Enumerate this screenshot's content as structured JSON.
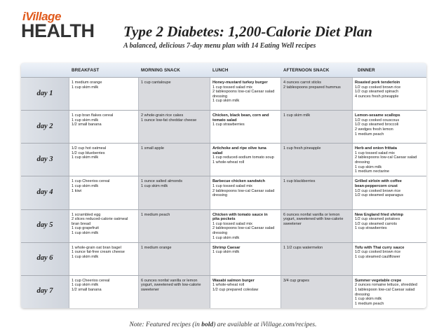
{
  "logo": {
    "top": "iVillage",
    "bottom": "HEALTH"
  },
  "title": "Type 2 Diabetes: 1,200-Calorie Diet Plan",
  "subtitle": "A balanced, delicious 7-day menu plan with 14 Eating Well recipes",
  "columns": [
    "BREAKFAST",
    "MORNING SNACK",
    "LUNCH",
    "AFTERNOON SNACK",
    "DINNER"
  ],
  "days": [
    {
      "label": "day 1",
      "breakfast": [
        {
          "t": "1 medium orange"
        },
        {
          "t": "1 cup skim milk"
        }
      ],
      "morning_snack": [
        {
          "t": "1 cup cantaloupe"
        }
      ],
      "lunch": [
        {
          "t": "Honey-mustard turkey burger",
          "b": true
        },
        {
          "t": "1 cup tossed salad mix"
        },
        {
          "t": "2 tablespoons low-cal Caesar salad"
        },
        {
          "t": "dressing"
        },
        {
          "t": "1 cup skim milk"
        }
      ],
      "afternoon_snack": [
        {
          "t": "4 ounces carrot sticks"
        },
        {
          "t": "2 tablespoons prepared hummus"
        }
      ],
      "dinner": [
        {
          "t": "Roasted pork tenderloin",
          "b": true
        },
        {
          "t": "1/2 cup cooked brown rice"
        },
        {
          "t": "1/2 cup steamed spinach"
        },
        {
          "t": "4 ounces fresh pineapple"
        }
      ]
    },
    {
      "label": "day 2",
      "breakfast": [
        {
          "t": "1 cup bran flakes cereal"
        },
        {
          "t": "1 cup skim milk"
        },
        {
          "t": "1/2 small banana"
        }
      ],
      "morning_snack": [
        {
          "t": "2 whole-grain rice cakes"
        },
        {
          "t": "1 ounce low-fat cheddar cheese"
        }
      ],
      "lunch": [
        {
          "t": "Chicken, black bean, corn and",
          "b": true
        },
        {
          "t": "tomato salad",
          "b": true
        },
        {
          "t": "1 cup strawberries"
        }
      ],
      "afternoon_snack": [
        {
          "t": "1 cup skim milk"
        }
      ],
      "dinner": [
        {
          "t": "Lemon-sesame scallops",
          "b": true
        },
        {
          "t": "1/2 cup cooked couscous"
        },
        {
          "t": "1/2 cup steamed broccoli"
        },
        {
          "t": "2 wedges fresh lemon"
        },
        {
          "t": "1 medium peach"
        }
      ]
    },
    {
      "label": "day 3",
      "breakfast": [
        {
          "t": "1/2 cup hot oatmeal"
        },
        {
          "t": "1/2 cup blueberries"
        },
        {
          "t": "1 cup skim milk"
        }
      ],
      "morning_snack": [
        {
          "t": "1 small apple"
        }
      ],
      "lunch": [
        {
          "t": "Artichoke and ripe olive tuna",
          "b": true
        },
        {
          "t": "salad",
          "b": true
        },
        {
          "t": "1 cup reduced-sodium tomato soup"
        },
        {
          "t": "1 whole-wheat roll"
        }
      ],
      "afternoon_snack": [
        {
          "t": "1 cup fresh pineapple"
        }
      ],
      "dinner": [
        {
          "t": "Herb and onion frittata",
          "b": true
        },
        {
          "t": "1 cup tossed salad mix"
        },
        {
          "t": "2 tablespoons low-cal Caesar salad"
        },
        {
          "t": "dressing"
        },
        {
          "t": "1 cup skim milk"
        },
        {
          "t": "1 medium nectarine"
        }
      ]
    },
    {
      "label": "day 4",
      "breakfast": [
        {
          "t": "1 cup Cheerios cereal"
        },
        {
          "t": "1 cup skim milk"
        },
        {
          "t": "1 kiwi"
        }
      ],
      "morning_snack": [
        {
          "t": "1 ounce salted almonds"
        },
        {
          "t": "1 cup skim milk"
        }
      ],
      "lunch": [
        {
          "t": "Barbecue chicken sandwich",
          "b": true
        },
        {
          "t": "1 cup tossed salad mix"
        },
        {
          "t": "2 tablespoons low-cal Caesar salad"
        },
        {
          "t": "dressing"
        }
      ],
      "afternoon_snack": [
        {
          "t": "1 cup blackberries"
        }
      ],
      "dinner": [
        {
          "t": "Grilled sirloin with coffee",
          "b": true
        },
        {
          "t": "bean-peppercorn crust",
          "b": true
        },
        {
          "t": "1/2 cup cooked brown rice"
        },
        {
          "t": "1/2 cup steamed asparagus"
        }
      ]
    },
    {
      "label": "day 5",
      "breakfast": [
        {
          "t": "1 scrambled egg"
        },
        {
          "t": "2 slices reduced-calorie oatmeal"
        },
        {
          "t": "bran bread"
        },
        {
          "t": "1 cup grapefruit"
        },
        {
          "t": "1 cup skim milk"
        }
      ],
      "morning_snack": [
        {
          "t": "1 medium peach"
        }
      ],
      "lunch": [
        {
          "t": "Chicken with tomato sauce in",
          "b": true
        },
        {
          "t": "pita pockets",
          "b": true
        },
        {
          "t": "1 cup tossed salad mix"
        },
        {
          "t": "2 tablespoons low-cal Caesar salad"
        },
        {
          "t": "dressing"
        },
        {
          "t": "1 cup skim milk"
        }
      ],
      "afternoon_snack": [
        {
          "t": "6 ounces nonfat vanilla or lemon"
        },
        {
          "t": "yogurt, sweetened with low-calorie"
        },
        {
          "t": "sweetener"
        }
      ],
      "dinner": [
        {
          "t": "New England fried shrimp",
          "b": true
        },
        {
          "t": "1/2 cup steamed potatoes"
        },
        {
          "t": "1/2 cup steamed carrots"
        },
        {
          "t": "1 cup strawberries"
        }
      ]
    },
    {
      "label": "day 6",
      "breakfast": [
        {
          "t": "1 whole-grain oat bran bagel"
        },
        {
          "t": "1 ounce fat-free cream cheese"
        },
        {
          "t": "1 cup skim milk"
        }
      ],
      "morning_snack": [
        {
          "t": "1 medium orange"
        }
      ],
      "lunch": [
        {
          "t": "Shrimp Caesar",
          "b": true
        },
        {
          "t": "1 cup skim milk"
        }
      ],
      "afternoon_snack": [
        {
          "t": "1 1/2 cups watermelon"
        }
      ],
      "dinner": [
        {
          "t": "Tofu with Thai curry sauce",
          "b": true
        },
        {
          "t": "1/2 cup cooked brown rice"
        },
        {
          "t": "1 cup steamed cauliflower"
        }
      ]
    },
    {
      "label": "day 7",
      "breakfast": [
        {
          "t": "1 cup Cheerios cereal"
        },
        {
          "t": "1 cup skim milk"
        },
        {
          "t": "1/2 small banana"
        }
      ],
      "morning_snack": [
        {
          "t": "6 ounces nonfat vanilla or lemon"
        },
        {
          "t": "yogurt, sweetened with low-calorie"
        },
        {
          "t": "sweetener"
        }
      ],
      "lunch": [
        {
          "t": "Wasabi salmon burger",
          "b": true
        },
        {
          "t": "1 whole-wheat roll"
        },
        {
          "t": "1/2 cup prepared coleslaw"
        }
      ],
      "afternoon_snack": [
        {
          "t": "3/4 cup grapes"
        }
      ],
      "dinner": [
        {
          "t": "Summer vegetable crepe",
          "b": true
        },
        {
          "t": "2 ounces romaine lettuce, shredded"
        },
        {
          "t": "1 tablespoon low-cal Caesar salad"
        },
        {
          "t": "dressing"
        },
        {
          "t": "1 cup skim milk"
        },
        {
          "t": "1 medium peach"
        }
      ]
    }
  ],
  "note": {
    "prefix": "Note: Featured recipes (in ",
    "bold": "bold",
    "suffix": ") are available at iVillage.com/recipes."
  }
}
